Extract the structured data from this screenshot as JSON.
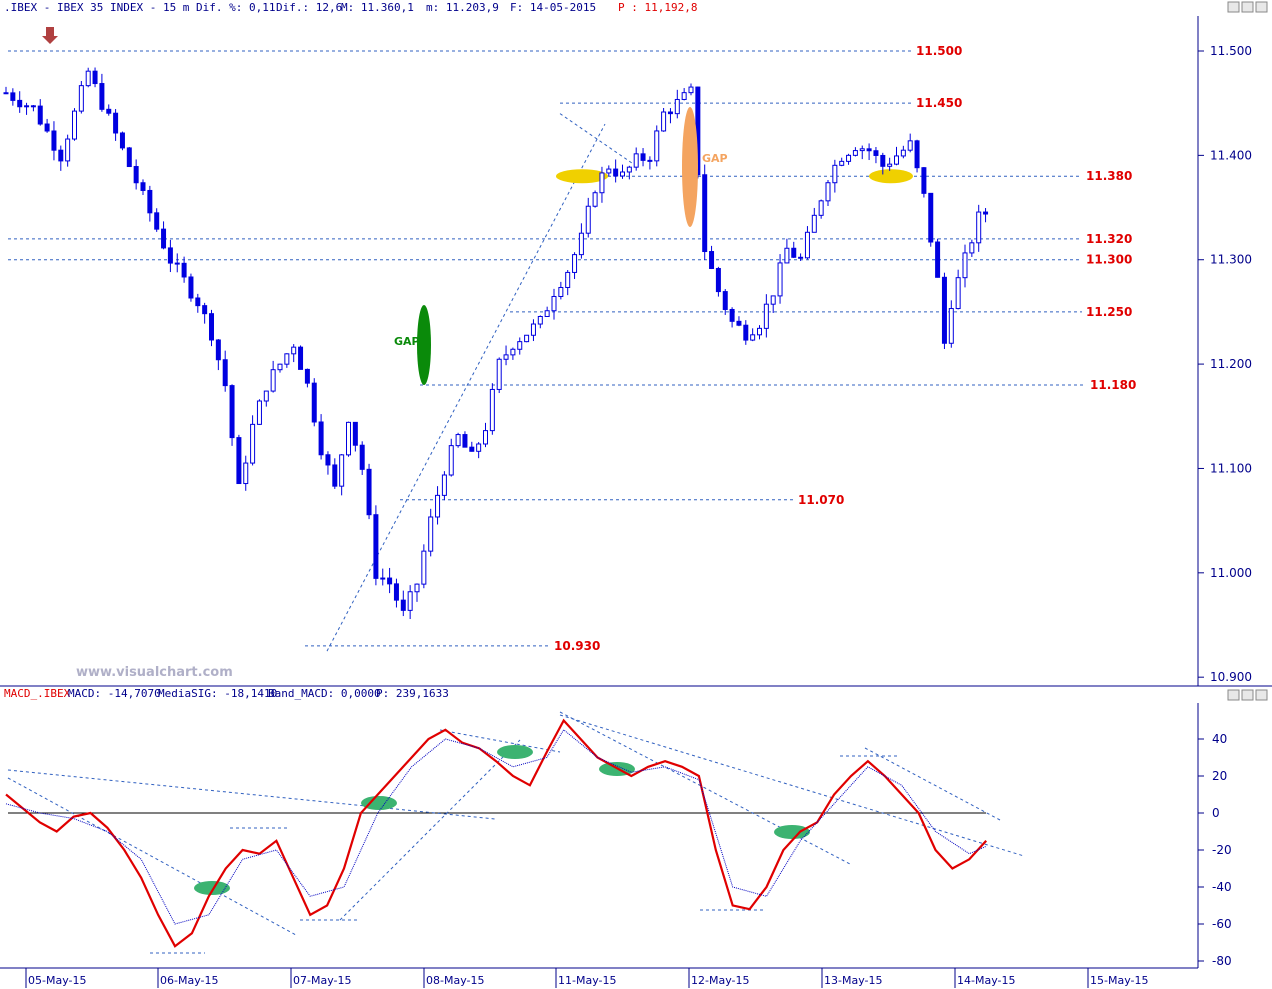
{
  "header": {
    "symbol": ".IBEX - IBEX 35 INDEX -  15 m",
    "dif_pct": "Dif. %: 0,11",
    "dif": "Dif.: 12,6",
    "max": "M: 11.360,1",
    "min": "m: 11.203,9",
    "date": "F: 14-05-2015",
    "price": "P : 11,192,8"
  },
  "watermark": "www.visualchart.com",
  "macd_header": {
    "name": "MACD_.IBEX",
    "macd": "MACD: -14,7070",
    "signal": "MediaSIG: -18,1410",
    "band": "Band_MACD: 0,0000",
    "p": "P: 239,1633"
  },
  "annotations": {
    "gap_green": "GAP",
    "gap_orange": "GAP"
  },
  "colors": {
    "candle": "#0000e0",
    "level_line": "#3060c0",
    "level_text": "#e00000",
    "macd": "#e00000",
    "signal": "#0000c0",
    "gap_green": "#0a8a0a",
    "gap_orange": "#f4a460",
    "ellipse_yellow": "#f0d000",
    "ellipse_teal": "#3cb371",
    "arrow": "#b04040"
  },
  "chart_data": [
    {
      "type": "candlestick",
      "title": "IBEX 35 INDEX 15 m",
      "x_labels": [
        "05-May-15",
        "06-May-15",
        "07-May-15",
        "08-May-15",
        "11-May-15",
        "12-May-15",
        "13-May-15",
        "14-May-15",
        "15-May-15"
      ],
      "ylim": [
        10880,
        11530
      ],
      "y_ticks": [
        "11.500",
        "11.400",
        "11.300",
        "11.200",
        "11.100",
        "11.000",
        "10.900"
      ],
      "y_tick_values": [
        11500,
        11400,
        11300,
        11200,
        11100,
        11000,
        10900
      ],
      "levels": [
        {
          "value": 11500,
          "label": "11.500"
        },
        {
          "value": 11450,
          "label": "11.450"
        },
        {
          "value": 11380,
          "label": "11.380"
        },
        {
          "value": 11320,
          "label": "11.320"
        },
        {
          "value": 11300,
          "label": "11.300"
        },
        {
          "value": 11250,
          "label": "11.250"
        },
        {
          "value": 11180,
          "label": "11.180"
        },
        {
          "value": 11070,
          "label": "11.070"
        },
        {
          "value": 10930,
          "label": "10.930"
        }
      ],
      "close_path": [
        [
          0,
          11460
        ],
        [
          4,
          11445
        ],
        [
          8,
          11400
        ],
        [
          12,
          11480
        ],
        [
          16,
          11420
        ],
        [
          20,
          11360
        ],
        [
          24,
          11300
        ],
        [
          28,
          11260
        ],
        [
          30,
          11230
        ],
        [
          32,
          11180
        ],
        [
          34,
          11080
        ],
        [
          36,
          11140
        ],
        [
          38,
          11180
        ],
        [
          40,
          11200
        ],
        [
          42,
          11220
        ],
        [
          44,
          11180
        ],
        [
          46,
          11120
        ],
        [
          48,
          11080
        ],
        [
          50,
          11150
        ],
        [
          52,
          11100
        ],
        [
          54,
          11000
        ],
        [
          56,
          10990
        ],
        [
          58,
          10960
        ],
        [
          60,
          10990
        ],
        [
          62,
          11050
        ],
        [
          64,
          11100
        ],
        [
          66,
          11130
        ],
        [
          68,
          11110
        ],
        [
          70,
          11140
        ],
        [
          72,
          11200
        ],
        [
          74,
          11220
        ],
        [
          76,
          11230
        ],
        [
          78,
          11240
        ],
        [
          80,
          11270
        ],
        [
          82,
          11290
        ],
        [
          84,
          11320
        ],
        [
          86,
          11370
        ],
        [
          88,
          11390
        ],
        [
          90,
          11380
        ],
        [
          92,
          11395
        ],
        [
          94,
          11400
        ],
        [
          96,
          11440
        ],
        [
          98,
          11450
        ],
        [
          100,
          11460
        ],
        [
          102,
          11310
        ],
        [
          104,
          11270
        ],
        [
          106,
          11240
        ],
        [
          108,
          11230
        ],
        [
          110,
          11240
        ],
        [
          112,
          11270
        ],
        [
          114,
          11310
        ],
        [
          116,
          11300
        ],
        [
          118,
          11340
        ],
        [
          120,
          11380
        ],
        [
          122,
          11400
        ],
        [
          124,
          11410
        ],
        [
          126,
          11405
        ],
        [
          128,
          11390
        ],
        [
          130,
          11400
        ],
        [
          132,
          11410
        ],
        [
          134,
          11360
        ],
        [
          136,
          11280
        ],
        [
          137,
          11220
        ],
        [
          138,
          11260
        ],
        [
          140,
          11300
        ],
        [
          142,
          11340
        ],
        [
          143,
          11345
        ]
      ]
    },
    {
      "type": "line",
      "title": "MACD_.IBEX",
      "ylim": [
        -82,
        62
      ],
      "y_ticks": [
        "60",
        "40",
        "20",
        "0",
        "-20",
        "-40",
        "-60",
        "-80"
      ],
      "y_tick_values": [
        60,
        40,
        20,
        0,
        -20,
        -40,
        -60,
        -80
      ],
      "series": [
        {
          "name": "MACD",
          "values": [
            [
              0,
              10
            ],
            [
              4,
              -5
            ],
            [
              6,
              -10
            ],
            [
              8,
              -2
            ],
            [
              10,
              0
            ],
            [
              12,
              -8
            ],
            [
              14,
              -20
            ],
            [
              16,
              -35
            ],
            [
              18,
              -55
            ],
            [
              20,
              -72
            ],
            [
              22,
              -65
            ],
            [
              24,
              -45
            ],
            [
              26,
              -30
            ],
            [
              28,
              -20
            ],
            [
              30,
              -22
            ],
            [
              32,
              -15
            ],
            [
              34,
              -35
            ],
            [
              36,
              -55
            ],
            [
              38,
              -50
            ],
            [
              40,
              -30
            ],
            [
              42,
              0
            ],
            [
              44,
              10
            ],
            [
              46,
              20
            ],
            [
              48,
              30
            ],
            [
              50,
              40
            ],
            [
              52,
              45
            ],
            [
              54,
              38
            ],
            [
              56,
              35
            ],
            [
              58,
              28
            ],
            [
              60,
              20
            ],
            [
              62,
              15
            ],
            [
              64,
              33
            ],
            [
              66,
              50
            ],
            [
              68,
              40
            ],
            [
              70,
              30
            ],
            [
              72,
              25
            ],
            [
              74,
              20
            ],
            [
              76,
              25
            ],
            [
              78,
              28
            ],
            [
              80,
              25
            ],
            [
              82,
              20
            ],
            [
              84,
              -20
            ],
            [
              86,
              -50
            ],
            [
              88,
              -52
            ],
            [
              90,
              -40
            ],
            [
              92,
              -20
            ],
            [
              94,
              -10
            ],
            [
              96,
              -5
            ],
            [
              98,
              10
            ],
            [
              100,
              20
            ],
            [
              102,
              28
            ],
            [
              104,
              20
            ],
            [
              106,
              10
            ],
            [
              108,
              0
            ],
            [
              110,
              -20
            ],
            [
              112,
              -30
            ],
            [
              114,
              -25
            ],
            [
              116,
              -15
            ]
          ]
        },
        {
          "name": "MediaSIG",
          "values": [
            [
              0,
              5
            ],
            [
              4,
              0
            ],
            [
              8,
              -3
            ],
            [
              12,
              -10
            ],
            [
              16,
              -25
            ],
            [
              20,
              -60
            ],
            [
              24,
              -55
            ],
            [
              28,
              -25
            ],
            [
              32,
              -20
            ],
            [
              36,
              -45
            ],
            [
              40,
              -40
            ],
            [
              44,
              0
            ],
            [
              48,
              25
            ],
            [
              52,
              40
            ],
            [
              56,
              35
            ],
            [
              60,
              25
            ],
            [
              64,
              30
            ],
            [
              66,
              45
            ],
            [
              70,
              30
            ],
            [
              74,
              22
            ],
            [
              78,
              25
            ],
            [
              82,
              18
            ],
            [
              86,
              -40
            ],
            [
              90,
              -45
            ],
            [
              94,
              -15
            ],
            [
              98,
              5
            ],
            [
              102,
              25
            ],
            [
              106,
              15
            ],
            [
              110,
              -10
            ],
            [
              114,
              -22
            ],
            [
              116,
              -18
            ]
          ]
        }
      ]
    }
  ]
}
